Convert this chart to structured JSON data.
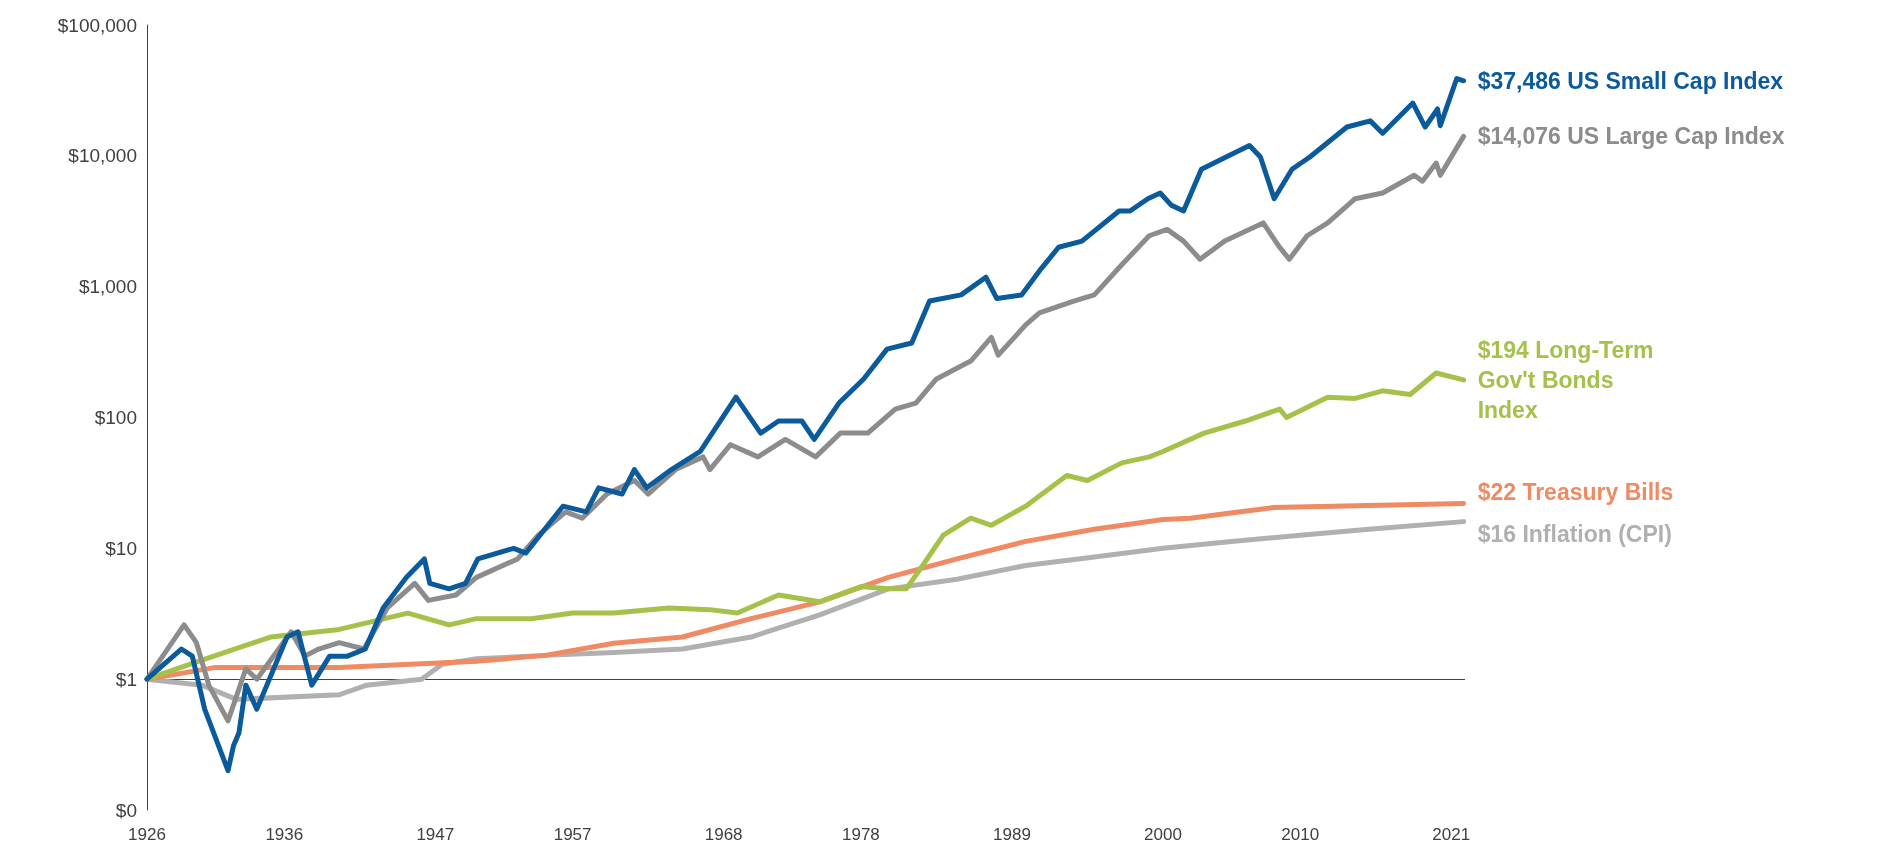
{
  "chart_data": {
    "type": "line",
    "xlim": [
      1926,
      2022
    ],
    "ylim": [
      0.1,
      100000
    ],
    "log": "y",
    "grid": false,
    "legend": false,
    "marker": "none",
    "line_style": "solid",
    "xticks": [
      1926,
      1936,
      1947,
      1957,
      1968,
      1978,
      1989,
      2000,
      2010,
      2021
    ],
    "yticks": [
      {
        "value": 0.1,
        "label": "$0"
      },
      {
        "value": 1,
        "label": "$1"
      },
      {
        "value": 10,
        "label": "$10"
      },
      {
        "value": 100,
        "label": "$100"
      },
      {
        "value": 1000,
        "label": "$1,000"
      },
      {
        "value": 10000,
        "label": "$10,000"
      },
      {
        "value": 100000,
        "label": "$100,000"
      }
    ],
    "ref_lines": [
      {
        "axis": "y",
        "value": 1,
        "color": "#404040"
      }
    ],
    "series": [
      {
        "name": "$37,486 US Small Cap Index",
        "color": "#0b5a9c",
        "x": [
          1926,
          1928.5,
          1929.3,
          1930.2,
          1931.9,
          1932.3,
          1932.7,
          1933.2,
          1934,
          1936.2,
          1937,
          1938,
          1939.3,
          1940.6,
          1941.9,
          1943.2,
          1944.9,
          1946.2,
          1946.6,
          1948,
          1949.2,
          1950.1,
          1952.7,
          1953.6,
          1956.3,
          1958,
          1958.9,
          1960.6,
          1961.5,
          1962.4,
          1964.2,
          1966.3,
          1968.9,
          1970.7,
          1972,
          1973.7,
          1974.6,
          1976.4,
          1978.2,
          1979.9,
          1981.7,
          1983,
          1985.3,
          1987.1,
          1987.9,
          1989.7,
          1991,
          1992.4,
          1994.1,
          1996.8,
          1997.6,
          1998.9,
          1999.8,
          2000.6,
          2001.5,
          2002.8,
          2004.6,
          2006.3,
          2007.1,
          2008.1,
          2009.4,
          2010.7,
          2013.4,
          2015.1,
          2016,
          2018.2,
          2019.1,
          2020,
          2020.2,
          2021.4,
          2021.9
        ],
        "values": [
          1,
          1.7,
          1.5,
          0.59,
          0.2,
          0.31,
          0.39,
          0.9,
          0.59,
          2.1,
          2.3,
          0.9,
          1.5,
          1.5,
          1.7,
          3.5,
          6,
          8.3,
          5.4,
          4.9,
          5.4,
          8.3,
          10,
          9.2,
          21,
          19,
          29,
          26,
          40,
          29,
          40,
          55,
          143,
          76,
          94,
          94,
          68,
          129,
          197,
          333,
          371,
          776,
          865,
          1180,
          811,
          865,
          1320,
          2000,
          2230,
          3790,
          3790,
          4700,
          5200,
          4200,
          3790,
          7900,
          9800,
          12000,
          9800,
          4700,
          7900,
          9800,
          16600,
          18500,
          14900,
          25300,
          16600,
          22800,
          17000,
          39000,
          37486
        ]
      },
      {
        "name": "$14,076 US Large Cap Index",
        "color": "#8c8c8c",
        "x": [
          1926,
          1928.7,
          1929.6,
          1930.5,
          1931.9,
          1932.5,
          1933.2,
          1934,
          1936.5,
          1937.5,
          1938.5,
          1940,
          1941.8,
          1943.5,
          1945.5,
          1946.5,
          1948.5,
          1950,
          1953,
          1954.5,
          1956.5,
          1957.7,
          1959.5,
          1961.5,
          1962.5,
          1964.5,
          1966.5,
          1967,
          1968.5,
          1970.5,
          1972.5,
          1974.7,
          1976.5,
          1978.5,
          1980.5,
          1982,
          1983.5,
          1986,
          1987.5,
          1988,
          1990,
          1991,
          1993.5,
          1995,
          1997,
          1999,
          2000.3,
          2001.5,
          2002.7,
          2004.5,
          2007.3,
          2008.5,
          2009.2,
          2010.5,
          2012,
          2014,
          2016,
          2018.3,
          2018.9,
          2019.9,
          2020.2,
          2021.9
        ],
        "values": [
          1,
          2.6,
          1.9,
          0.9,
          0.48,
          0.73,
          1.2,
          1,
          2.3,
          1.5,
          1.7,
          1.9,
          1.7,
          3.5,
          5.4,
          4,
          4.4,
          6,
          8.3,
          12.6,
          19,
          17,
          26,
          33,
          26,
          40,
          50,
          40,
          62,
          50,
          68,
          50,
          76,
          76,
          116,
          129,
          197,
          270,
          410,
          300,
          510,
          630,
          776,
          865,
          1470,
          2450,
          2740,
          2230,
          1620,
          2230,
          3070,
          2000,
          1620,
          2450,
          3070,
          4700,
          5200,
          7100,
          6400,
          8800,
          7100,
          14076
        ]
      },
      {
        "name": "$194 Long-Term Gov't Bonds Index",
        "color": "#a5c14a",
        "x": [
          1926,
          1930,
          1935,
          1940,
          1945,
          1948,
          1950,
          1954,
          1957,
          1960,
          1964,
          1967,
          1969,
          1972,
          1975,
          1978,
          1980,
          1981.3,
          1982.5,
          1984,
          1986,
          1987.5,
          1990,
          1993,
          1994.5,
          1997,
          1999,
          2000,
          2003,
          2006,
          2008.5,
          2009,
          2012,
          2014,
          2016,
          2018,
          2019.9,
          2021.9
        ],
        "values": [
          1,
          1.4,
          2.1,
          2.4,
          3.2,
          2.6,
          2.9,
          2.9,
          3.2,
          3.2,
          3.5,
          3.4,
          3.2,
          4.4,
          3.9,
          5.1,
          4.9,
          4.9,
          7.4,
          12.6,
          17,
          15,
          21,
          36,
          33,
          45,
          50,
          55,
          76,
          94,
          116,
          100,
          143,
          140,
          160,
          150,
          219,
          194
        ]
      },
      {
        "name": "$22 Treasury Bills",
        "color": "#ef8a62",
        "x": [
          1926,
          1931,
          1940,
          1950,
          1955,
          1960,
          1965,
          1970,
          1975,
          1980,
          1985,
          1990,
          1995,
          2000,
          2002,
          2008,
          2021.9
        ],
        "values": [
          1,
          1.23,
          1.23,
          1.37,
          1.52,
          1.88,
          2.1,
          2.9,
          3.9,
          6,
          8.3,
          11.3,
          14,
          16.6,
          17,
          20.5,
          22
        ]
      },
      {
        "name": "$16 Inflation (CPI)",
        "color": "#b0b0b0",
        "x": [
          1926,
          1930,
          1932.5,
          1940,
          1942,
          1946,
          1947.5,
          1950,
          1955,
          1960,
          1965,
          1970,
          1975,
          1980,
          1985,
          1990,
          1995,
          2000,
          2005,
          2010,
          2015,
          2021.9
        ],
        "values": [
          1,
          0.9,
          0.7,
          0.76,
          0.9,
          1,
          1.3,
          1.43,
          1.52,
          1.6,
          1.7,
          2.1,
          3.1,
          4.9,
          5.8,
          7.4,
          8.6,
          10,
          11.3,
          12.6,
          14,
          16
        ]
      }
    ]
  }
}
